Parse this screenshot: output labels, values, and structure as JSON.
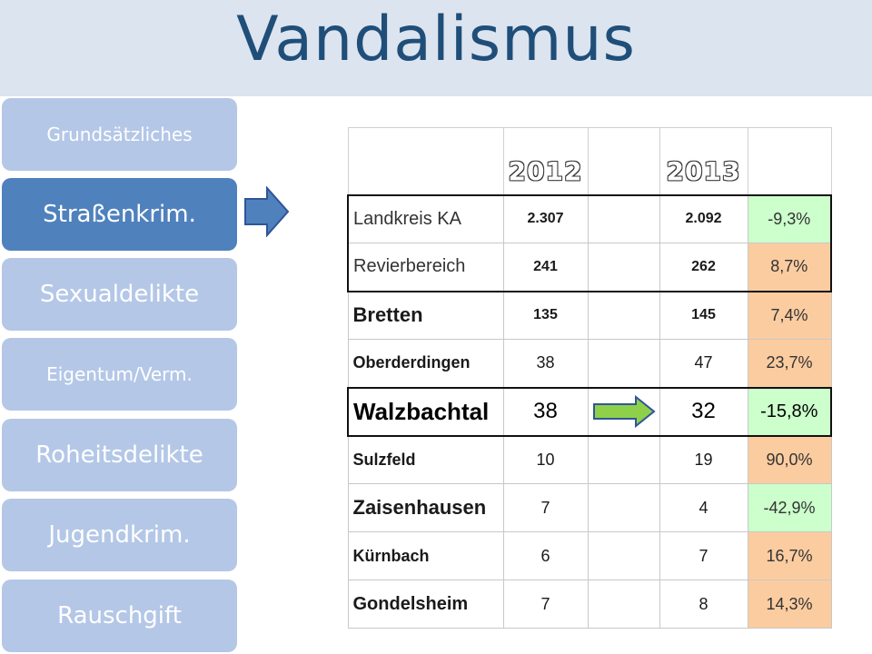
{
  "title": "Vandalismus",
  "nav": [
    {
      "label": "Grundsätzliches",
      "active": false
    },
    {
      "label": "Straßenkrim.",
      "active": true
    },
    {
      "label": "Sexualdelikte",
      "active": false
    },
    {
      "label": "Eigentum/Verm.",
      "active": false
    },
    {
      "label": "Roheitsdelikte",
      "active": false
    },
    {
      "label": "Jugendkrim.",
      "active": false
    },
    {
      "label": "Rauschgift",
      "active": false
    }
  ],
  "table": {
    "years": [
      "2012",
      "2013"
    ],
    "rows": [
      {
        "name": "Landkreis KA",
        "y2012": "2.307",
        "y2013": "2.092",
        "change": "-9,3%",
        "trend": "down"
      },
      {
        "name": "Revierbereich",
        "y2012": "241",
        "y2013": "262",
        "change": "8,7%",
        "trend": "up"
      },
      {
        "name": "Bretten",
        "y2012": "135",
        "y2013": "145",
        "change": "7,4%",
        "trend": "up"
      },
      {
        "name": "Oberderdingen",
        "y2012": "38",
        "y2013": "47",
        "change": "23,7%",
        "trend": "up"
      },
      {
        "name": "Walzbachtal",
        "y2012": "38",
        "y2013": "32",
        "change": "-15,8%",
        "trend": "down"
      },
      {
        "name": "Sulzfeld",
        "y2012": "10",
        "y2013": "19",
        "change": "90,0%",
        "trend": "up"
      },
      {
        "name": "Zaisenhausen",
        "y2012": "7",
        "y2013": "4",
        "change": "-42,9%",
        "trend": "down"
      },
      {
        "name": "Kürnbach",
        "y2012": "6",
        "y2013": "7",
        "change": "16,7%",
        "trend": "up"
      },
      {
        "name": "Gondelsheim",
        "y2012": "7",
        "y2013": "8",
        "change": "14,3%",
        "trend": "up"
      }
    ]
  },
  "colors": {
    "nav_inactive": "#b4c7e7",
    "nav_active": "#4f81bd",
    "title": "#1f4e79",
    "decrease_bg": "#ccffcc",
    "increase_bg": "#fbcca0",
    "highlight_arrow": "#8ed04a"
  },
  "icons": {
    "nav_pointer": "right-arrow-icon",
    "row_highlight": "right-arrow-icon"
  }
}
